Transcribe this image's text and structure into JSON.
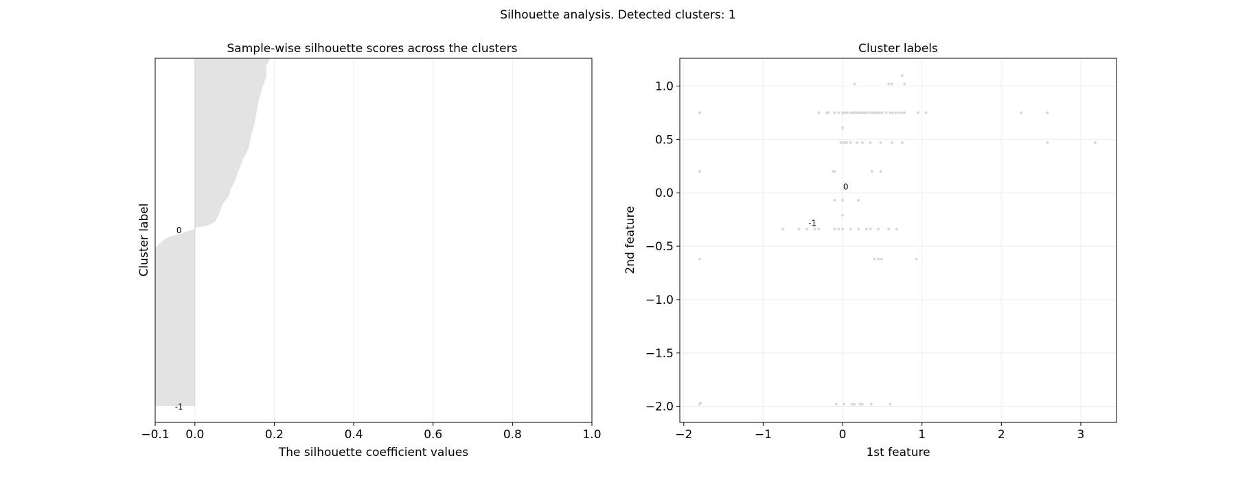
{
  "suptitle": "Silhouette analysis. Detected clusters: 1",
  "chart_data": [
    {
      "type": "area",
      "title": "Sample-wise silhouette scores across the clusters",
      "xlabel": "The silhouette coefficient values",
      "ylabel": "Cluster label",
      "xlim": [
        -0.1,
        1.0
      ],
      "xticks": [
        "−0.1",
        "0.0",
        "0.2",
        "0.4",
        "0.6",
        "0.8",
        "1.0"
      ],
      "xtick_values": [
        -0.1,
        0.0,
        0.2,
        0.4,
        0.6,
        0.8,
        1.0
      ],
      "grid": true,
      "fill_color": "#e3e3e3",
      "cluster_labels": [
        {
          "text": "0",
          "x": -0.04,
          "y": 0.48
        },
        {
          "text": "-1",
          "x": -0.04,
          "y": 0.965
        }
      ],
      "profile": [
        [
          0.0,
          0.19
        ],
        [
          0.02,
          0.18
        ],
        [
          0.05,
          0.18
        ],
        [
          0.08,
          0.17
        ],
        [
          0.12,
          0.16
        ],
        [
          0.15,
          0.155
        ],
        [
          0.18,
          0.15
        ],
        [
          0.22,
          0.14
        ],
        [
          0.25,
          0.135
        ],
        [
          0.28,
          0.12
        ],
        [
          0.31,
          0.11
        ],
        [
          0.34,
          0.1
        ],
        [
          0.36,
          0.09
        ],
        [
          0.38,
          0.085
        ],
        [
          0.4,
          0.07
        ],
        [
          0.43,
          0.06
        ],
        [
          0.45,
          0.05
        ],
        [
          0.455,
          0.04
        ],
        [
          0.46,
          0.03
        ],
        [
          0.465,
          0.005
        ],
        [
          0.47,
          -0.005
        ],
        [
          0.475,
          -0.02
        ],
        [
          0.48,
          -0.03
        ],
        [
          0.485,
          -0.045
        ],
        [
          0.49,
          -0.065
        ],
        [
          0.5,
          -0.08
        ],
        [
          0.51,
          -0.09
        ],
        [
          0.52,
          -0.1
        ],
        [
          0.955,
          -0.1
        ],
        [
          0.955,
          0.0
        ]
      ]
    },
    {
      "type": "scatter",
      "title": "Cluster labels",
      "xlabel": "1st feature",
      "ylabel": "2nd feature",
      "xlim": [
        -2.05,
        3.45
      ],
      "ylim": [
        -2.15,
        1.26
      ],
      "xticks": [
        "−2",
        "−1",
        "0",
        "1",
        "2",
        "3"
      ],
      "xtick_values": [
        -2,
        -1,
        0,
        1,
        2,
        3
      ],
      "yticks": [
        "1.0",
        "0.5",
        "0.0",
        "−0.5",
        "−1.0",
        "−1.5",
        "−2.0"
      ],
      "ytick_values": [
        1.0,
        0.5,
        0.0,
        -0.5,
        -1.0,
        -1.5,
        -2.0
      ],
      "grid": true,
      "point_color": "#d8d8d8",
      "annotations": [
        {
          "text": "0",
          "x": 0.04,
          "y": 0.03
        },
        {
          "text": "-1",
          "x": -0.38,
          "y": -0.31
        }
      ],
      "points": [
        [
          -1.8,
          0.75
        ],
        [
          -1.8,
          0.2
        ],
        [
          -1.8,
          -0.62
        ],
        [
          -1.8,
          -1.98
        ],
        [
          -1.79,
          -1.97
        ],
        [
          -0.75,
          -0.34
        ],
        [
          -0.55,
          -0.34
        ],
        [
          -0.45,
          -0.34
        ],
        [
          -0.35,
          -0.34
        ],
        [
          -0.3,
          -0.34
        ],
        [
          -0.1,
          -0.34
        ],
        [
          -0.05,
          -0.34
        ],
        [
          0.0,
          -0.34
        ],
        [
          0.1,
          -0.34
        ],
        [
          0.2,
          -0.34
        ],
        [
          0.3,
          -0.34
        ],
        [
          0.35,
          -0.34
        ],
        [
          0.45,
          -0.34
        ],
        [
          0.58,
          -0.34
        ],
        [
          0.68,
          -0.34
        ],
        [
          -0.3,
          0.75
        ],
        [
          -0.2,
          0.75
        ],
        [
          -0.18,
          0.75
        ],
        [
          -0.1,
          0.75
        ],
        [
          -0.05,
          0.75
        ],
        [
          0.0,
          0.75
        ],
        [
          0.03,
          0.75
        ],
        [
          0.06,
          0.75
        ],
        [
          0.1,
          0.75
        ],
        [
          0.13,
          0.75
        ],
        [
          0.16,
          0.75
        ],
        [
          0.19,
          0.75
        ],
        [
          0.22,
          0.75
        ],
        [
          0.25,
          0.75
        ],
        [
          0.28,
          0.75
        ],
        [
          0.31,
          0.75
        ],
        [
          0.35,
          0.75
        ],
        [
          0.38,
          0.75
        ],
        [
          0.41,
          0.75
        ],
        [
          0.44,
          0.75
        ],
        [
          0.47,
          0.75
        ],
        [
          0.5,
          0.75
        ],
        [
          0.55,
          0.75
        ],
        [
          0.6,
          0.75
        ],
        [
          0.63,
          0.75
        ],
        [
          0.67,
          0.75
        ],
        [
          0.71,
          0.75
        ],
        [
          0.75,
          0.75
        ],
        [
          0.78,
          0.75
        ],
        [
          0.95,
          0.75
        ],
        [
          1.05,
          0.75
        ],
        [
          2.25,
          0.75
        ],
        [
          2.58,
          0.75
        ],
        [
          -0.02,
          0.47
        ],
        [
          0.02,
          0.47
        ],
        [
          0.05,
          0.47
        ],
        [
          0.1,
          0.47
        ],
        [
          0.18,
          0.47
        ],
        [
          0.25,
          0.47
        ],
        [
          0.35,
          0.47
        ],
        [
          0.48,
          0.47
        ],
        [
          0.62,
          0.47
        ],
        [
          0.75,
          0.47
        ],
        [
          2.58,
          0.47
        ],
        [
          3.18,
          0.47
        ],
        [
          0.58,
          1.02
        ],
        [
          0.62,
          1.02
        ],
        [
          0.78,
          1.02
        ],
        [
          0.15,
          1.02
        ],
        [
          0.75,
          1.1
        ],
        [
          0.0,
          0.61
        ],
        [
          -0.12,
          0.2
        ],
        [
          -0.1,
          0.2
        ],
        [
          0.37,
          0.2
        ],
        [
          0.48,
          0.2
        ],
        [
          -0.1,
          -0.07
        ],
        [
          0.0,
          -0.07
        ],
        [
          0.2,
          -0.07
        ],
        [
          0.0,
          -0.21
        ],
        [
          0.4,
          -0.62
        ],
        [
          0.45,
          -0.62
        ],
        [
          0.49,
          -0.62
        ],
        [
          0.93,
          -0.62
        ],
        [
          -0.08,
          -1.98
        ],
        [
          0.02,
          -1.98
        ],
        [
          0.12,
          -1.98
        ],
        [
          0.15,
          -1.98
        ],
        [
          0.22,
          -1.98
        ],
        [
          0.25,
          -1.98
        ],
        [
          0.36,
          -1.98
        ],
        [
          0.6,
          -1.98
        ]
      ]
    }
  ]
}
